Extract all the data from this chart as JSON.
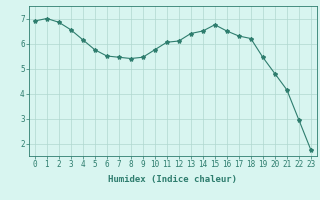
{
  "x": [
    0,
    1,
    2,
    3,
    4,
    5,
    6,
    7,
    8,
    9,
    10,
    11,
    12,
    13,
    14,
    15,
    16,
    17,
    18,
    19,
    20,
    21,
    22,
    23
  ],
  "y": [
    6.9,
    7.0,
    6.85,
    6.55,
    6.15,
    5.75,
    5.5,
    5.45,
    5.4,
    5.45,
    5.75,
    6.05,
    6.1,
    6.4,
    6.5,
    6.75,
    6.5,
    6.3,
    6.2,
    5.45,
    4.8,
    4.15,
    2.95,
    1.75
  ],
  "line_color": "#2e7d6e",
  "marker": "*",
  "marker_size": 3,
  "bg_color": "#d8f5f0",
  "grid_color": "#b0d8d0",
  "xlabel": "Humidex (Indice chaleur)",
  "xlim": [
    -0.5,
    23.5
  ],
  "ylim": [
    1.5,
    7.5
  ],
  "yticks": [
    2,
    3,
    4,
    5,
    6,
    7
  ],
  "xticks": [
    0,
    1,
    2,
    3,
    4,
    5,
    6,
    7,
    8,
    9,
    10,
    11,
    12,
    13,
    14,
    15,
    16,
    17,
    18,
    19,
    20,
    21,
    22,
    23
  ],
  "tick_color": "#2e7d6e",
  "label_fontsize": 6.5,
  "tick_fontsize": 5.5
}
